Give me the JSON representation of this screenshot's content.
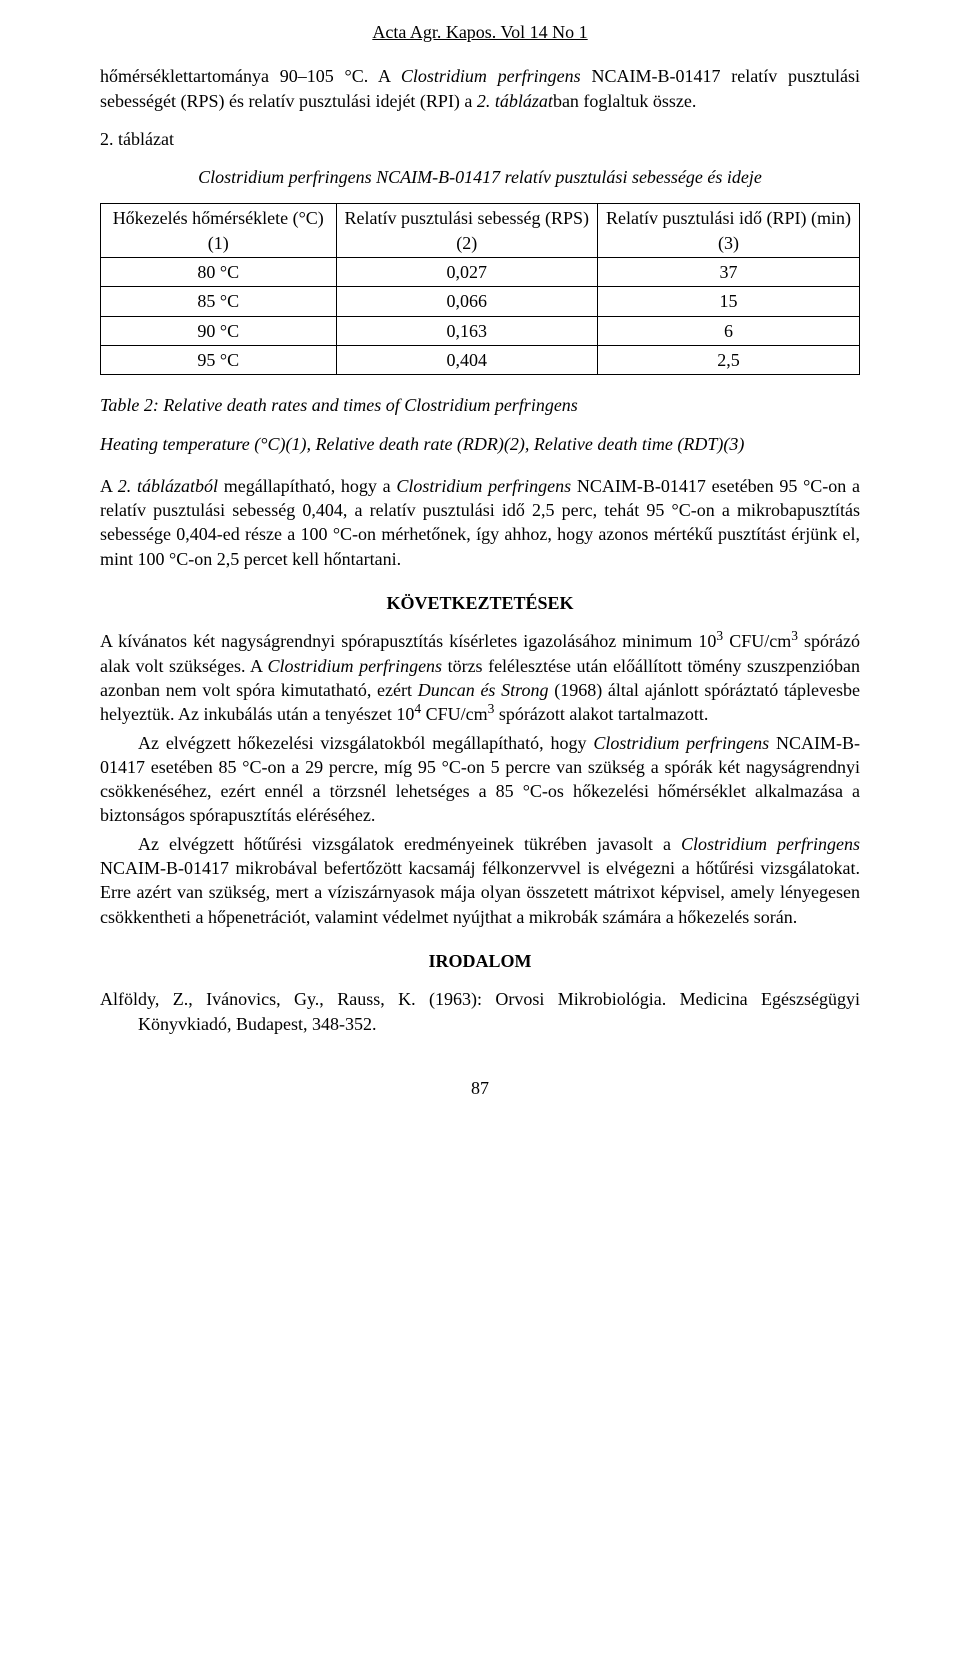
{
  "journal_header": "Acta Agr. Kapos. Vol 14 No 1",
  "intro_para_html": "hőmérséklettartománya 90–105 °C. A <span class=\"italic\">Clostridium perfringens</span> NCAIM-B-01417 relatív pusztulási sebességét (RPS) és relatív pusztulási idejét (RPI) a <span class=\"italic\">2. táblázat</span>ban foglaltuk össze.",
  "table_number": "2. táblázat",
  "table_title_html": "<span class=\"italic\">Clostridium perfringens</span> NCAIM-B-01417 relatív pusztulási sebessége és ideje",
  "table": {
    "columns": [
      "Hőkezelés hőmérséklete (°C) (1)",
      "Relatív pusztulási sebesség (RPS) (2)",
      "Relatív pusztulási idő (RPI) (min) (3)"
    ],
    "rows": [
      [
        "80 °C",
        "0,027",
        "37"
      ],
      [
        "85 °C",
        "0,066",
        "15"
      ],
      [
        "90 °C",
        "0,163",
        "6"
      ],
      [
        "95 °C",
        "0,404",
        "2,5"
      ]
    ]
  },
  "table_caption_en": "Table 2: Relative death rates and times of Clostridium perfringens",
  "table_note_en": "Heating temperature (°C)(1), Relative death rate (RDR)(2), Relative death time (RDT)(3)",
  "discussion_para_html": "A <span class=\"italic\">2. táblázatból</span> megállapítható, hogy a <span class=\"italic\">Clostridium perfringens</span> NCAIM-B-01417 esetében 95 °C-on a relatív pusztulási sebesség 0,404, a relatív pusztulási idő 2,5 perc, tehát 95 °C-on a mikrobapusztítás sebessége 0,404-ed része a 100 °C-on mérhetőnek, így ahhoz, hogy azonos mértékű pusztítást érjünk el, mint 100 °C-on 2,5 percet kell hőntartani.",
  "section_conclusions": "KÖVETKEZTETÉSEK",
  "conclusions_p1_html": "A kívánatos két nagyságrendnyi spórapusztítás kísérletes igazolásához minimum 10<sup>3</sup> CFU/cm<sup>3</sup> spórázó alak volt szükséges. A <span class=\"italic\">Clostridium perfringens</span> törzs felélesztése után előállított tömény szuszpenzióban azonban nem volt spóra kimutatható, ezért <span class=\"italic\">Duncan és Strong</span> (1968) által ajánlott spóráztató táplevesbe helyeztük. Az inkubálás után a tenyészet 10<sup>4</sup> CFU/cm<sup>3</sup> spórázott alakot tartalmazott.",
  "conclusions_p2_html": "Az elvégzett hőkezelési vizsgálatokból megállapítható, hogy <span class=\"italic\">Clostridium perfringens</span> NCAIM-B-01417 esetében 85 °C-on a 29 percre, míg 95 °C-on 5 percre van szükség a spórák két nagyságrendnyi csökkenéséhez, ezért ennél a törzsnél lehetséges a 85 °C-os hőkezelési hőmérséklet alkalmazása a biztonságos spórapusztítás eléréséhez.",
  "conclusions_p3_html": "Az elvégzett hőtűrési vizsgálatok eredményeinek tükrében javasolt a <span class=\"italic\">Clostridium perfringens</span> NCAIM-B-01417 mikrobával befertőzött kacsamáj félkonzervvel is elvégezni a hőtűrési vizsgálatokat. Erre azért van szükség, mert a víziszárnyasok mája olyan összetett mátrixot képvisel, amely lényegesen csökkentheti a hőpenetrációt, valamint védelmet nyújthat a mikrobák számára a hőkezelés során.",
  "section_references": "IRODALOM",
  "ref1": "Alföldy, Z., Ivánovics, Gy., Rauss, K. (1963): Orvosi Mikrobiológia. Medicina Egészségügyi Könyvkiadó, Budapest, 348-352.",
  "page_number": "87"
}
